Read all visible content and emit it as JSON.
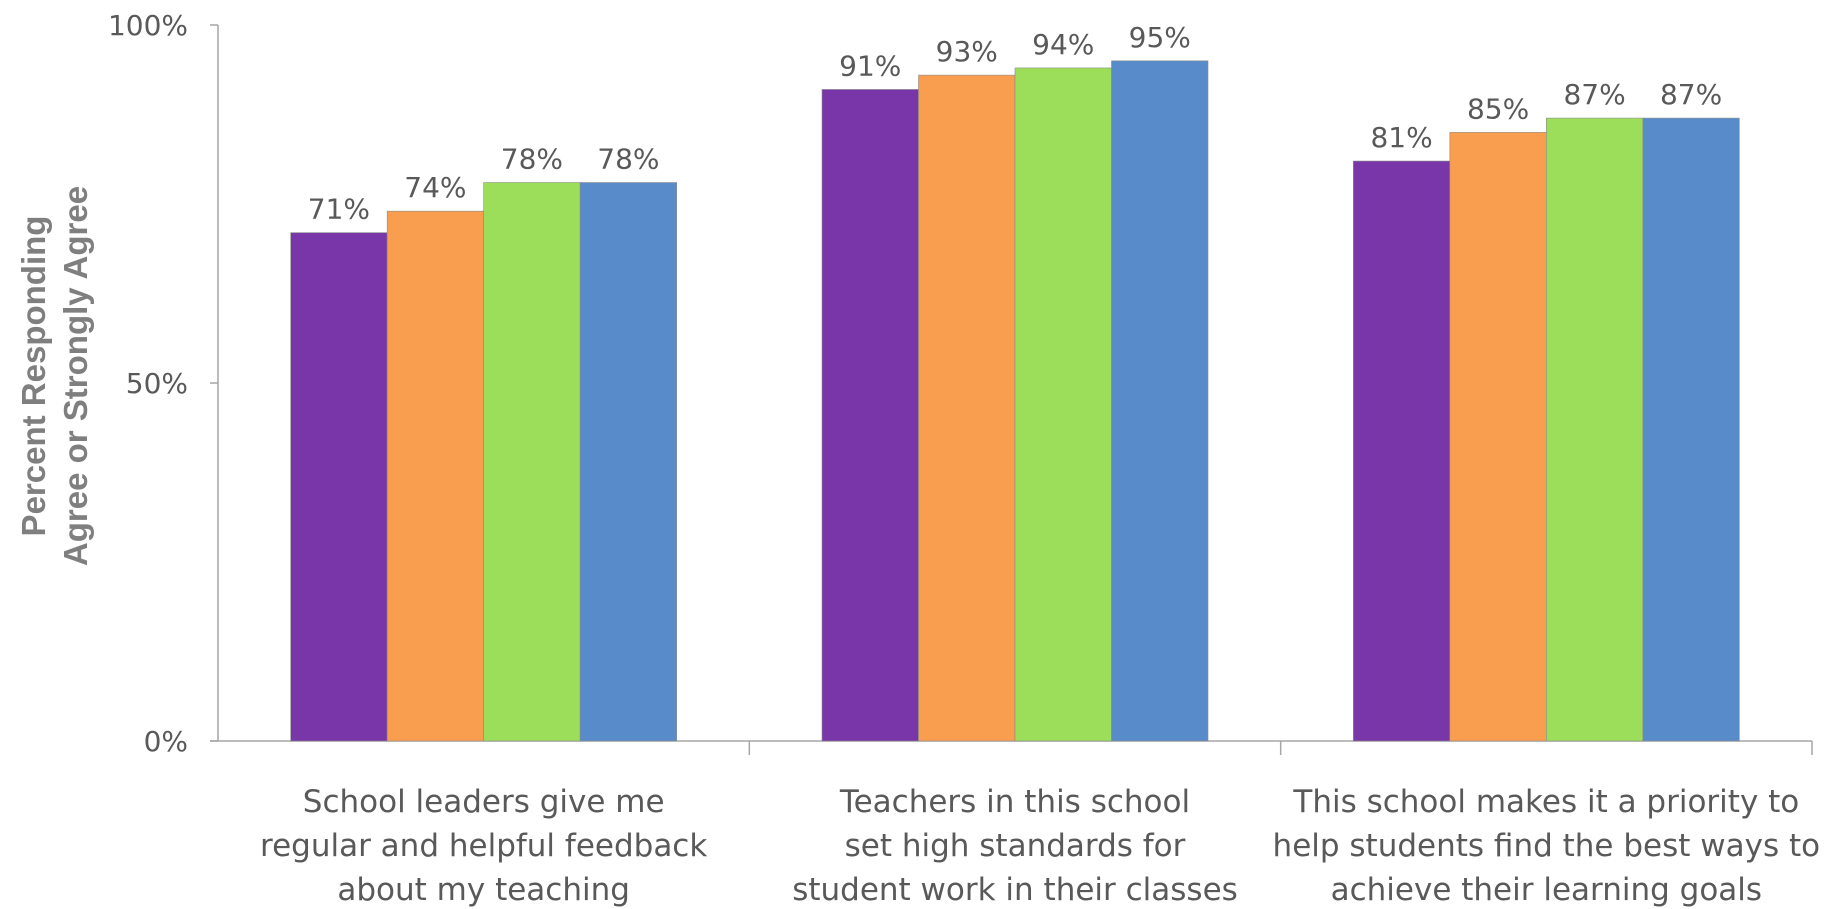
{
  "chart_data": {
    "type": "bar",
    "title": "",
    "xlabel": "",
    "ylabel_lines": [
      "Percent Responding",
      "Agree or Strongly Agree"
    ],
    "ylim": [
      0,
      100
    ],
    "yticks": [
      {
        "value": 0,
        "label": "0%"
      },
      {
        "value": 50,
        "label": "50%"
      },
      {
        "value": 100,
        "label": "100%"
      }
    ],
    "grid": false,
    "legend": "none",
    "categories": [
      {
        "lines": [
          "School leaders give me",
          "regular and helpful feedback",
          "about my teaching"
        ]
      },
      {
        "lines": [
          "Teachers in this school",
          "set high standards for",
          "student work in their classes"
        ]
      },
      {
        "lines": [
          "This school makes it a priority to",
          "help students find the best ways to",
          "achieve their learning goals"
        ]
      }
    ],
    "series": [
      {
        "color": "#7936A8",
        "values": [
          71,
          91,
          81
        ],
        "labels": [
          "71%",
          "91%",
          "81%"
        ]
      },
      {
        "color": "#F89E4E",
        "values": [
          74,
          93,
          85
        ],
        "labels": [
          "74%",
          "93%",
          "85%"
        ]
      },
      {
        "color": "#9CDD59",
        "values": [
          78,
          94,
          87
        ],
        "labels": [
          "78%",
          "94%",
          "87%"
        ]
      },
      {
        "color": "#588BCA",
        "values": [
          78,
          95,
          87
        ],
        "labels": [
          "78%",
          "95%",
          "87%"
        ]
      }
    ]
  }
}
